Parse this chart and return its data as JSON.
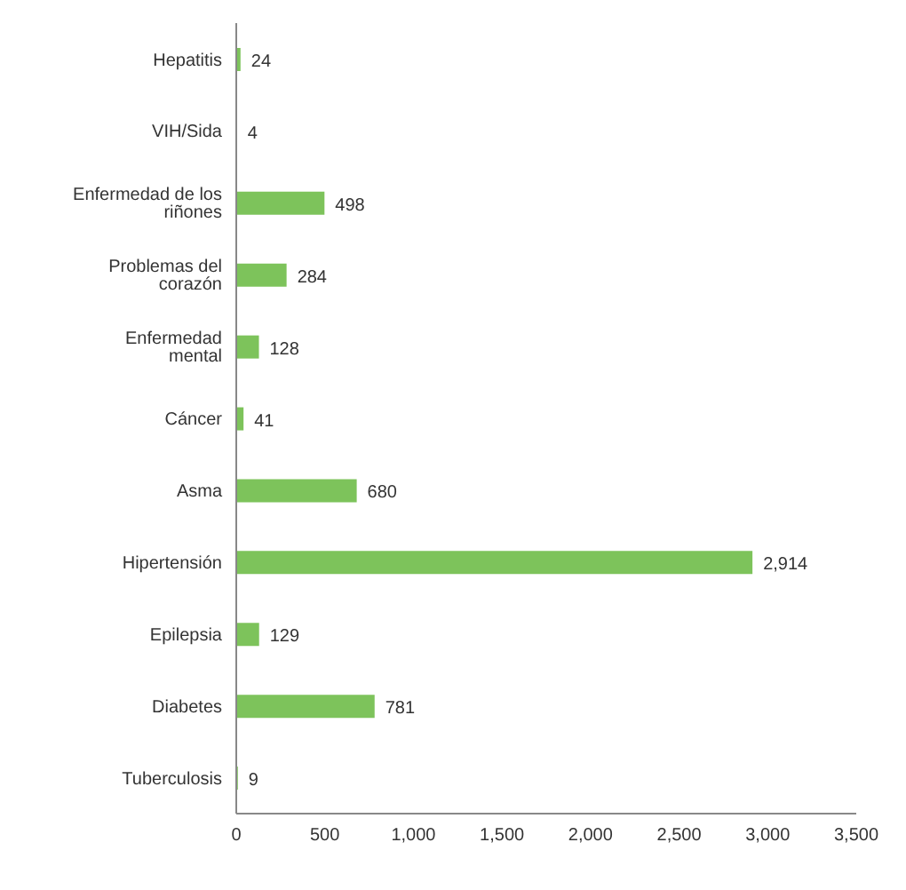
{
  "chart_data": {
    "type": "bar",
    "orientation": "horizontal",
    "categories": [
      "Hepatitis",
      "VIH/Sida",
      "Enfermedad de los riñones",
      "Problemas del corazón",
      "Enfermedad mental",
      "Cáncer",
      "Asma",
      "Hipertensión",
      "Epilepsia",
      "Diabetes",
      "Tuberculosis"
    ],
    "values": [
      24,
      4,
      498,
      284,
      128,
      41,
      680,
      2914,
      129,
      781,
      9
    ],
    "value_labels": [
      "24",
      "4",
      "498",
      "284",
      "128",
      "41",
      "680",
      "2,914",
      "129",
      "781",
      "9"
    ],
    "color": "#7dc35b",
    "xlim": [
      0,
      3500
    ],
    "xticks": [
      0,
      500,
      {
        "value": 1000,
        "label": "1,000"
      },
      {
        "value": 1500,
        "label": "1,500"
      },
      {
        "value": 2000,
        "label": "2,000"
      },
      {
        "value": 2500,
        "label": "2,500"
      },
      {
        "value": 3000,
        "label": "3,000"
      },
      {
        "value": 3500,
        "label": "3,500"
      }
    ]
  }
}
